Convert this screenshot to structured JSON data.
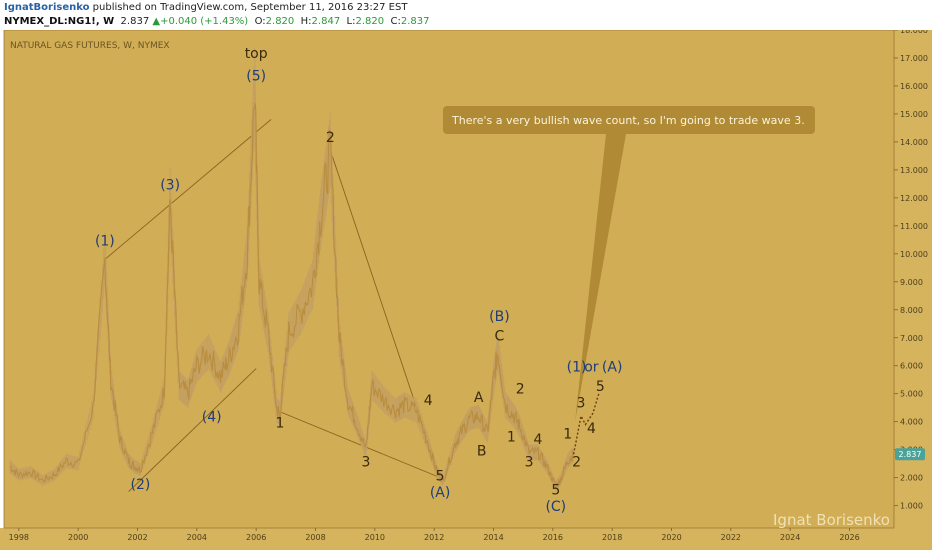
{
  "header": {
    "author": "IgnatBorisenko",
    "published_text": " published on TradingView.com, September 11, 2016 23:27 EST",
    "symbol": "NYMEX_DL:NG1!, W",
    "last": "2.837",
    "change": "+0.040 (+1.43%)",
    "ohlc": [
      {
        "label": "O:",
        "value": "2.820"
      },
      {
        "label": "H:",
        "value": "2.847"
      },
      {
        "label": "L:",
        "value": "2.820"
      },
      {
        "label": "C:",
        "value": "2.837"
      }
    ]
  },
  "colors": {
    "plot_background": "#d1ad56",
    "price_line": "#b98d3e",
    "trend_lines": "#8a6420",
    "wave_blue": "#1f3d78",
    "wave_dark": "#3a2a0c",
    "current_price_label": "#4aa39a",
    "callout": "#b08a34"
  },
  "chart_data": {
    "type": "line",
    "title": "NATURAL GAS FUTURES, W, NYMEX",
    "x_ticks": [
      "1998",
      "2000",
      "2002",
      "2004",
      "2006",
      "2008",
      "2010",
      "2012",
      "2014",
      "2016",
      "2018",
      "2020",
      "2022",
      "2024",
      "2026"
    ],
    "y_ticks": [
      "1.000",
      "2.000",
      "3.000",
      "4.000",
      "5.000",
      "6.000",
      "7.000",
      "8.000",
      "9.000",
      "10.000",
      "11.000",
      "12.000",
      "13.000",
      "14.000",
      "15.000",
      "16.000",
      "17.000",
      "18.000"
    ],
    "xlim": [
      1997.5,
      2027.5
    ],
    "ylim": [
      0.2,
      18.0
    ],
    "current_price": "2.837",
    "series": [
      {
        "x": [
          1997.7,
          1998.0,
          1998.4,
          1998.8,
          1999.2,
          1999.6,
          2000.0,
          2000.5,
          2000.9,
          2001.1,
          2001.4,
          2001.7,
          2001.9,
          2002.1,
          2002.5,
          2002.9,
          2003.1,
          2003.4,
          2003.7,
          2004.0,
          2004.4,
          2004.8,
          2005.1,
          2005.4,
          2005.7,
          2005.95,
          2006.1,
          2006.4,
          2006.7,
          2006.8,
          2007.1,
          2007.5,
          2007.9,
          2008.2,
          2008.5,
          2008.8,
          2009.1,
          2009.4,
          2009.7,
          2009.9,
          2010.3,
          2010.7,
          2011.0,
          2011.4,
          2011.8,
          2012.1,
          2012.3,
          2012.7,
          2012.9,
          2013.2,
          2013.5,
          2013.8,
          2014.0,
          2014.15,
          2014.4,
          2014.7,
          2014.9,
          2015.2,
          2015.5,
          2015.8,
          2016.1,
          2016.25,
          2016.5,
          2016.7
        ],
        "y": [
          2.4,
          2.1,
          2.2,
          1.9,
          2.1,
          2.6,
          2.5,
          4.5,
          9.8,
          5.5,
          3.4,
          2.6,
          2.4,
          2.3,
          3.6,
          5.1,
          11.9,
          5.3,
          5.0,
          6.0,
          6.5,
          5.6,
          6.3,
          7.3,
          10.0,
          15.8,
          9.0,
          7.2,
          4.4,
          4.3,
          7.2,
          7.9,
          8.9,
          11.5,
          13.7,
          7.0,
          4.7,
          3.9,
          3.0,
          5.3,
          4.8,
          4.4,
          4.6,
          4.4,
          3.2,
          2.2,
          1.9,
          3.2,
          3.6,
          4.1,
          4.2,
          3.6,
          5.5,
          6.5,
          4.6,
          4.2,
          3.8,
          2.9,
          2.9,
          2.4,
          1.7,
          1.9,
          2.6,
          2.837
        ]
      }
    ],
    "projection": {
      "x": [
        2016.7,
        2016.95,
        2017.1,
        2017.35,
        2017.55
      ],
      "y": [
        2.837,
        4.2,
        3.9,
        4.3,
        5.0
      ]
    },
    "trend_lines": [
      {
        "x": [
          2000.9,
          2006.5
        ],
        "y": [
          9.8,
          14.8
        ]
      },
      {
        "x": [
          2001.7,
          2006.0
        ],
        "y": [
          1.5,
          5.9
        ]
      },
      {
        "x": [
          2006.7,
          2012.2
        ],
        "y": [
          4.4,
          2.0
        ]
      },
      {
        "x": [
          2008.5,
          2012.2
        ],
        "y": [
          13.7,
          2.0
        ]
      }
    ],
    "annotations": [
      {
        "text": "top",
        "x": 2006.0,
        "y": 17.0,
        "color": "dark"
      },
      {
        "text": "(5)",
        "x": 2006.0,
        "y": 16.2,
        "color": "blue"
      },
      {
        "text": "(1)",
        "x": 2000.9,
        "y": 10.3,
        "color": "blue"
      },
      {
        "text": "(3)",
        "x": 2003.1,
        "y": 12.3,
        "color": "blue"
      },
      {
        "text": "(4)",
        "x": 2004.5,
        "y": 4.0,
        "color": "blue"
      },
      {
        "text": "(2)",
        "x": 2002.1,
        "y": 1.6,
        "color": "blue"
      },
      {
        "text": "2",
        "x": 2008.5,
        "y": 14.0,
        "color": "dark"
      },
      {
        "text": "1",
        "x": 2006.8,
        "y": 3.8,
        "color": "dark"
      },
      {
        "text": "3",
        "x": 2009.7,
        "y": 2.4,
        "color": "dark"
      },
      {
        "text": "4",
        "x": 2011.8,
        "y": 4.6,
        "color": "dark"
      },
      {
        "text": "5",
        "x": 2012.2,
        "y": 1.9,
        "color": "dark"
      },
      {
        "text": "(A)",
        "x": 2012.2,
        "y": 1.3,
        "color": "blue"
      },
      {
        "text": "A",
        "x": 2013.5,
        "y": 4.7,
        "color": "dark"
      },
      {
        "text": "B",
        "x": 2013.6,
        "y": 2.8,
        "color": "dark"
      },
      {
        "text": "(B)",
        "x": 2014.2,
        "y": 7.6,
        "color": "blue"
      },
      {
        "text": "C",
        "x": 2014.2,
        "y": 6.9,
        "color": "dark"
      },
      {
        "text": "2",
        "x": 2014.9,
        "y": 5.0,
        "color": "dark"
      },
      {
        "text": "1",
        "x": 2014.6,
        "y": 3.3,
        "color": "dark"
      },
      {
        "text": "4",
        "x": 2015.5,
        "y": 3.2,
        "color": "dark"
      },
      {
        "text": "3",
        "x": 2015.2,
        "y": 2.4,
        "color": "dark"
      },
      {
        "text": "5",
        "x": 2016.1,
        "y": 1.4,
        "color": "dark"
      },
      {
        "text": "(C)",
        "x": 2016.1,
        "y": 0.8,
        "color": "blue"
      },
      {
        "text": "1",
        "x": 2016.5,
        "y": 3.4,
        "color": "dark"
      },
      {
        "text": "2",
        "x": 2016.8,
        "y": 2.4,
        "color": "dark"
      },
      {
        "text": "3",
        "x": 2016.95,
        "y": 4.5,
        "color": "dark"
      },
      {
        "text": "4",
        "x": 2017.3,
        "y": 3.6,
        "color": "dark"
      },
      {
        "text": "5",
        "x": 2017.6,
        "y": 5.1,
        "color": "dark"
      },
      {
        "text": "(1)",
        "x": 2016.8,
        "y": 5.8,
        "color": "blue"
      },
      {
        "text": "or",
        "x": 2017.3,
        "y": 5.8,
        "color": "blue"
      },
      {
        "text": "(A)",
        "x": 2018.0,
        "y": 5.8,
        "color": "blue"
      }
    ],
    "callout": "There's a very bullish wave count, so I'm going to trade wave 3.",
    "watermark": "Ignat Borisenko"
  }
}
